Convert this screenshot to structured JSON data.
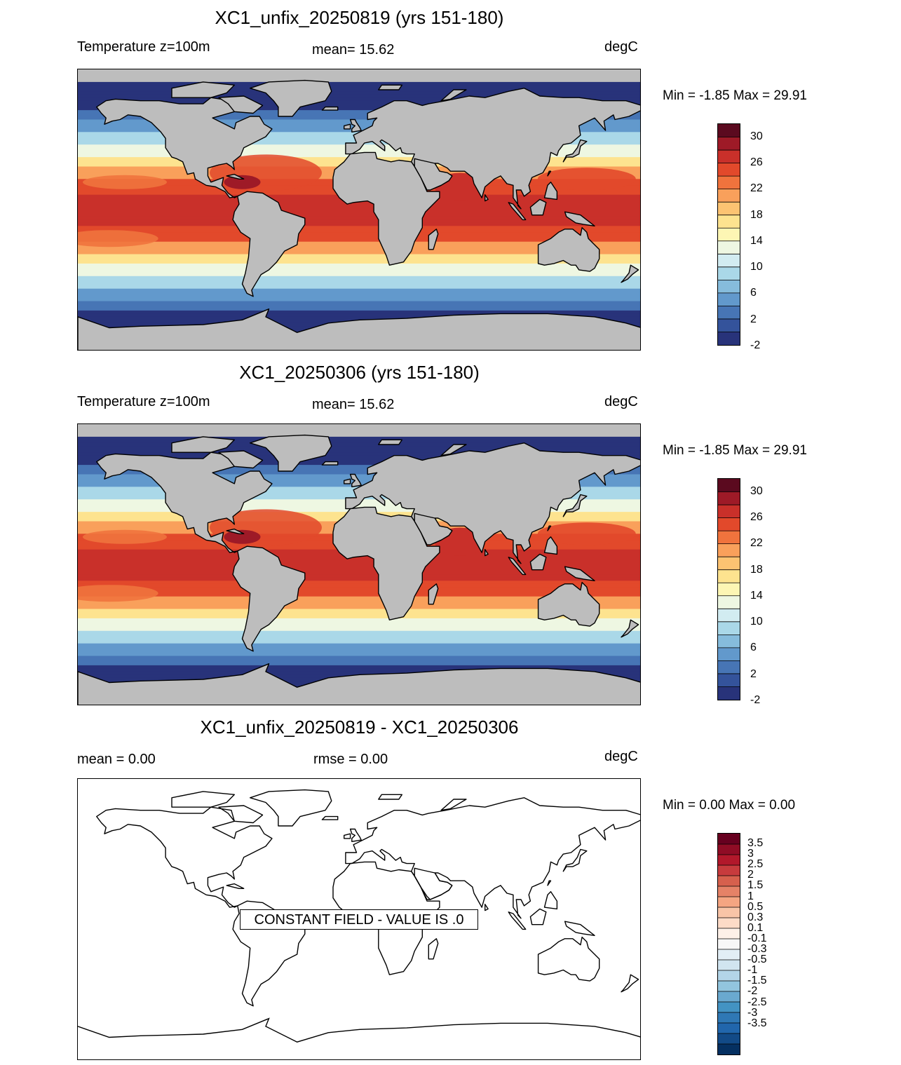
{
  "panels": [
    {
      "title": "XC1_unfix_20250819 (yrs 151-180)",
      "left_label": "Temperature z=100m",
      "center_label": "mean=  15.62",
      "units": "degC",
      "minmax": "Min =  -1.85 Max =  29.91",
      "colorbar": {
        "ticks": [
          "30",
          "26",
          "22",
          "18",
          "14",
          "10",
          "6",
          "2",
          "-2"
        ],
        "colors": [
          "#5b0a1f",
          "#9e1a27",
          "#c9302a",
          "#e2492b",
          "#f0733d",
          "#f9a05b",
          "#fcc372",
          "#fde38f",
          "#fdf6b4",
          "#eef7e2",
          "#d2ecf1",
          "#aad8e8",
          "#86bcdc",
          "#6299cc",
          "#4775b5",
          "#34539b",
          "#28337a"
        ]
      },
      "field": "temperature"
    },
    {
      "title": "XC1_20250306 (yrs 151-180)",
      "left_label": "Temperature z=100m",
      "center_label": "mean=  15.62",
      "units": "degC",
      "minmax": "Min =  -1.85 Max =  29.91",
      "colorbar": {
        "ticks": [
          "30",
          "26",
          "22",
          "18",
          "14",
          "10",
          "6",
          "2",
          "-2"
        ],
        "colors": [
          "#5b0a1f",
          "#9e1a27",
          "#c9302a",
          "#e2492b",
          "#f0733d",
          "#f9a05b",
          "#fcc372",
          "#fde38f",
          "#fdf6b4",
          "#eef7e2",
          "#d2ecf1",
          "#aad8e8",
          "#86bcdc",
          "#6299cc",
          "#4775b5",
          "#34539b",
          "#28337a"
        ]
      },
      "field": "temperature"
    },
    {
      "title": "XC1_unfix_20250819 - XC1_20250306",
      "left_label": "mean =   0.00",
      "center_label": "rmse =   0.00",
      "units": "degC",
      "minmax": "Min =   0.00 Max =   0.00",
      "constant_label": "CONSTANT FIELD - VALUE IS .0",
      "colorbar": {
        "ticks": [
          "3.5",
          "3",
          "2.5",
          "2",
          "1.5",
          "1",
          "0.5",
          "0.3",
          "0.1",
          "-0.1",
          "-0.3",
          "-0.5",
          "-1",
          "-1.5",
          "-2",
          "-2.5",
          "-3",
          "-3.5"
        ],
        "colors": [
          "#67001f",
          "#8f0c25",
          "#b2182b",
          "#c73b3d",
          "#d6604d",
          "#e58267",
          "#f4a582",
          "#f8c4a7",
          "#fddbc7",
          "#fdf0e8",
          "#f7f7f7",
          "#e2eef5",
          "#d1e5f0",
          "#b3d5e8",
          "#92c5de",
          "#6aa9cf",
          "#4393c3",
          "#2f78b5",
          "#2166ac",
          "#124a87",
          "#053061"
        ]
      },
      "field": "difference"
    }
  ]
}
